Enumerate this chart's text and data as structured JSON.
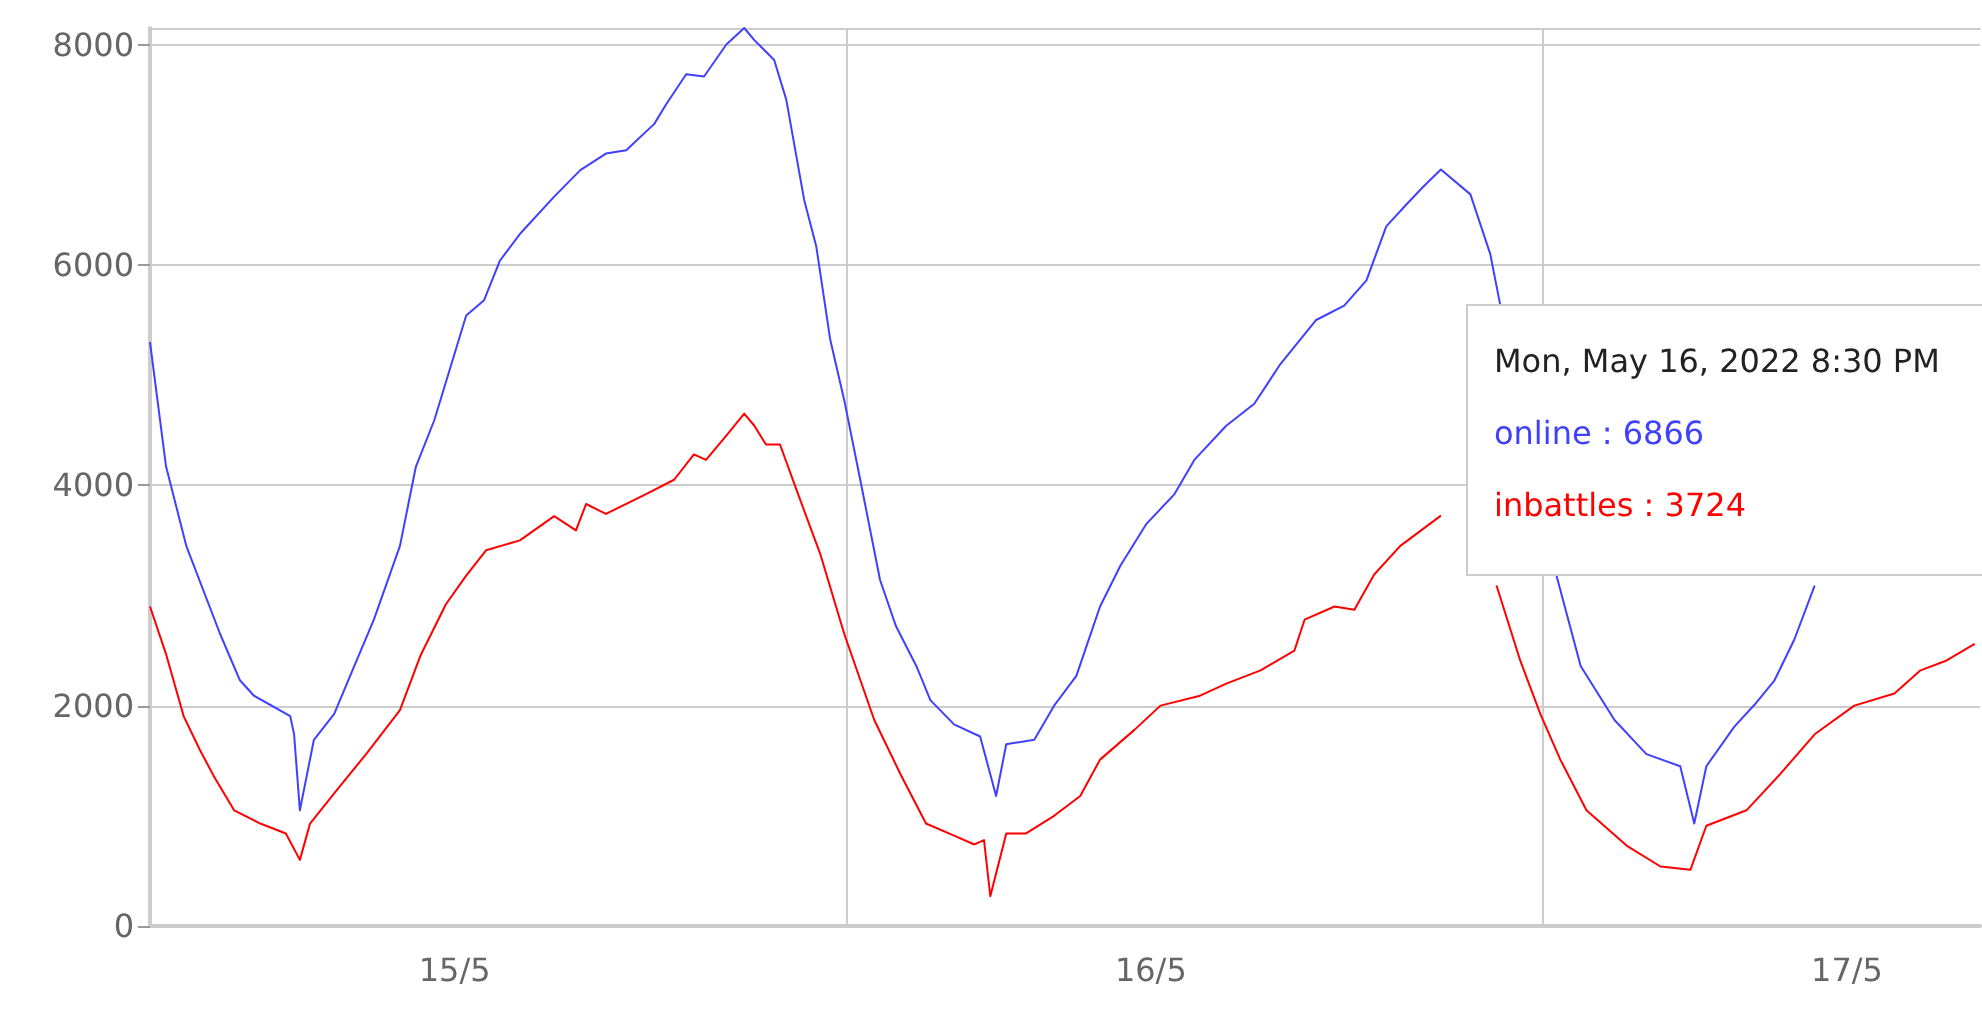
{
  "chart_data": {
    "type": "line",
    "xlim": [
      "2022-05-15T00:00",
      "2022-05-17T15:05"
    ],
    "xticks": [
      {
        "value": "2022-05-15T10:30",
        "label": "15/5"
      },
      {
        "value": "2022-05-16T00:00",
        "label": null
      },
      {
        "value": "2022-05-16T10:30",
        "label": "16/5"
      },
      {
        "value": "2022-05-17T00:00",
        "label": null
      },
      {
        "value": "2022-05-17T10:30",
        "label": "17/5"
      }
    ],
    "ylim": [
      0,
      8150
    ],
    "yticks": [
      0,
      2000,
      4000,
      6000,
      8000
    ],
    "grid": true,
    "marker": "none",
    "line_style": "solid",
    "annotations": [
      "Mon, May 16, 2022 8:30 PM",
      "online : 6866",
      "inbattles : 3724"
    ],
    "series": [
      {
        "color": "#4040ff",
        "x": [
          "2022-05-15T00:00",
          "2022-05-15T00:33",
          "2022-05-15T01:15",
          "2022-05-15T02:25",
          "2022-05-15T03:06",
          "2022-05-15T03:35",
          "2022-05-15T04:50",
          "2022-05-15T04:58",
          "2022-05-15T05:10",
          "2022-05-15T05:39",
          "2022-05-15T06:21",
          "2022-05-15T06:54",
          "2022-05-15T07:43",
          "2022-05-15T08:37",
          "2022-05-15T09:10",
          "2022-05-15T09:48",
          "2022-05-15T10:54",
          "2022-05-15T11:31",
          "2022-05-15T12:04",
          "2022-05-15T12:45",
          "2022-05-15T13:56",
          "2022-05-15T14:50",
          "2022-05-15T15:43",
          "2022-05-15T16:25",
          "2022-05-15T17:23",
          "2022-05-15T17:48",
          "2022-05-15T18:29",
          "2022-05-15T19:06",
          "2022-05-15T19:52",
          "2022-05-15T20:29",
          "2022-05-15T20:50",
          "2022-05-15T21:31",
          "2022-05-15T21:56",
          "2022-05-15T22:33",
          "2022-05-15T22:58",
          "2022-05-15T23:27",
          "2022-05-15T23:56",
          "2022-05-16T00:29",
          "2022-05-16T01:10",
          "2022-05-16T01:43",
          "2022-05-16T02:25",
          "2022-05-16T02:54",
          "2022-05-16T03:43",
          "2022-05-16T04:37",
          "2022-05-16T05:10",
          "2022-05-16T05:31",
          "2022-05-16T06:29",
          "2022-05-16T07:10",
          "2022-05-16T07:56",
          "2022-05-16T08:17",
          "2022-05-16T08:45",
          "2022-05-16T09:27",
          "2022-05-16T10:21",
          "2022-05-16T11:19",
          "2022-05-16T12:00",
          "2022-05-16T13:06",
          "2022-05-16T14:04",
          "2022-05-16T14:58",
          "2022-05-16T16:12",
          "2022-05-16T17:10",
          "2022-05-16T17:56",
          "2022-05-16T18:37",
          "2022-05-16T19:19",
          "2022-05-16T19:56",
          "2022-05-16T20:30",
          "2022-05-16T21:31",
          "2022-05-16T22:12",
          "2022-05-16T22:33",
          "2022-05-16T23:30",
          "2022-05-17T00:29",
          "2022-05-17T01:19",
          "2022-05-17T02:29",
          "2022-05-17T03:35",
          "2022-05-17T04:45",
          "2022-05-17T05:14",
          "2022-05-17T05:39",
          "2022-05-17T06:37",
          "2022-05-17T07:19",
          "2022-05-17T08:00",
          "2022-05-17T08:41",
          "2022-05-17T09:23"
        ],
        "values": [
          5300,
          4175,
          3450,
          2650,
          2230,
          2090,
          1905,
          1740,
          1050,
          1690,
          1925,
          2270,
          2780,
          3450,
          4170,
          4590,
          5540,
          5680,
          6040,
          6280,
          6620,
          6860,
          7010,
          7040,
          7280,
          7460,
          7730,
          7710,
          8000,
          8150,
          8040,
          7860,
          7500,
          6590,
          6170,
          5320,
          4770,
          4050,
          3140,
          2720,
          2360,
          2050,
          1830,
          1720,
          1180,
          1650,
          1690,
          2000,
          2270,
          2540,
          2900,
          3270,
          3650,
          3920,
          4230,
          4540,
          4740,
          5100,
          5500,
          5630,
          5860,
          6350,
          6550,
          6720,
          6866,
          6640,
          6100,
          5630,
          null,
          3180,
          2360,
          1870,
          1560,
          1450,
          930,
          1450,
          1810,
          2010,
          2230,
          2600,
          3090
        ]
      },
      {
        "color": "#ff0000",
        "x": [
          "2022-05-15T00:00",
          "2022-05-15T00:33",
          "2022-05-15T01:10",
          "2022-05-15T01:43",
          "2022-05-15T02:12",
          "2022-05-15T02:54",
          "2022-05-15T03:48",
          "2022-05-15T04:41",
          "2022-05-15T05:10",
          "2022-05-15T05:31",
          "2022-05-15T06:33",
          "2022-05-15T07:27",
          "2022-05-15T08:37",
          "2022-05-15T09:19",
          "2022-05-15T10:12",
          "2022-05-15T10:54",
          "2022-05-15T11:35",
          "2022-05-15T12:45",
          "2022-05-15T13:56",
          "2022-05-15T14:41",
          "2022-05-15T15:02",
          "2022-05-15T15:43",
          "2022-05-15T17:06",
          "2022-05-15T18:04",
          "2022-05-15T18:45",
          "2022-05-15T19:10",
          "2022-05-15T19:52",
          "2022-05-15T20:29",
          "2022-05-15T20:50",
          "2022-05-15T21:14",
          "2022-05-15T21:43",
          "2022-05-15T22:17",
          "2022-05-15T23:06",
          "2022-05-15T23:56",
          "2022-05-16T00:58",
          "2022-05-16T01:52",
          "2022-05-16T02:45",
          "2022-05-16T03:43",
          "2022-05-16T04:25",
          "2022-05-16T04:45",
          "2022-05-16T04:58",
          "2022-05-16T05:31",
          "2022-05-16T06:12",
          "2022-05-16T07:10",
          "2022-05-16T08:04",
          "2022-05-16T08:45",
          "2022-05-16T09:56",
          "2022-05-16T10:50",
          "2022-05-16T12:12",
          "2022-05-16T13:06",
          "2022-05-16T14:17",
          "2022-05-16T15:27",
          "2022-05-16T15:48",
          "2022-05-16T16:50",
          "2022-05-16T17:31",
          "2022-05-16T18:12",
          "2022-05-16T19:06",
          "2022-05-16T20:30",
          "2022-05-16T21:40",
          "2022-05-16T22:25",
          "2022-05-16T23:14",
          "2022-05-16T23:56",
          "2022-05-17T00:37",
          "2022-05-17T01:31",
          "2022-05-17T02:54",
          "2022-05-17T04:04",
          "2022-05-17T05:06",
          "2022-05-17T05:39",
          "2022-05-17T07:02",
          "2022-05-17T08:12",
          "2022-05-17T09:23",
          "2022-05-17T10:45",
          "2022-05-17T12:08",
          "2022-05-17T13:02",
          "2022-05-17T13:56",
          "2022-05-17T14:54"
        ],
        "values": [
          2900,
          2470,
          1900,
          1600,
          1360,
          1050,
          930,
          840,
          600,
          930,
          1270,
          1560,
          1960,
          2450,
          2920,
          3180,
          3410,
          3500,
          3720,
          3590,
          3830,
          3740,
          3920,
          4050,
          4280,
          4230,
          4450,
          4650,
          4540,
          4370,
          4370,
          3960,
          3380,
          2650,
          1870,
          1380,
          930,
          820,
          740,
          780,
          270,
          840,
          840,
          1000,
          1180,
          1510,
          1780,
          2000,
          2090,
          2200,
          2320,
          2500,
          2780,
          2900,
          2870,
          3190,
          3450,
          3724,
          null,
          3090,
          2410,
          1920,
          1510,
          1050,
          730,
          540,
          510,
          910,
          1050,
          1380,
          1740,
          2000,
          2110,
          2320,
          2410,
          2560
        ]
      }
    ]
  }
}
